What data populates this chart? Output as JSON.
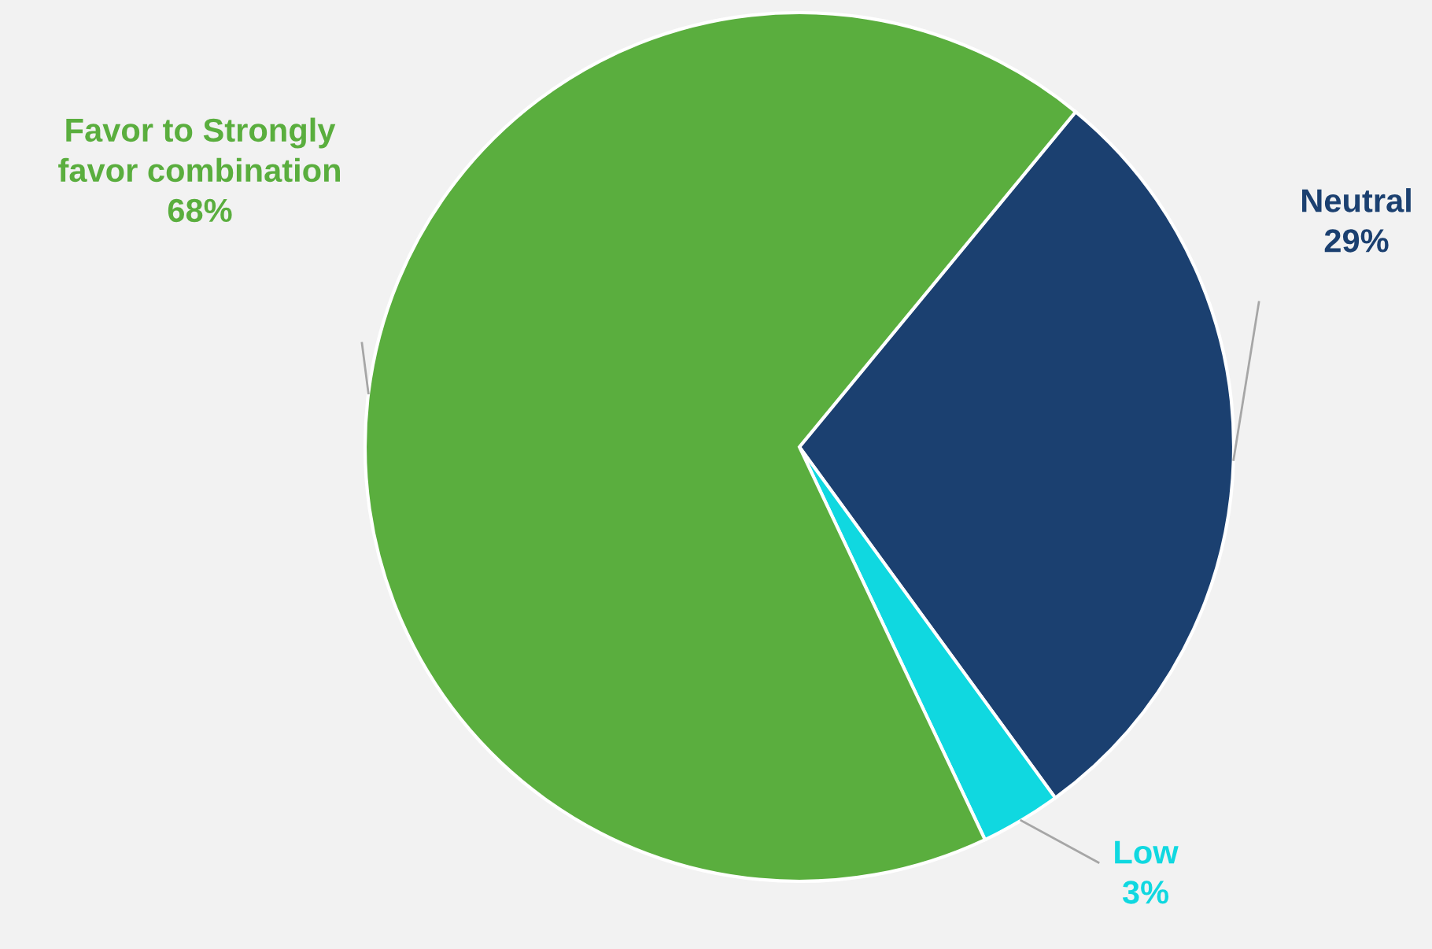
{
  "chart_data": {
    "type": "pie",
    "categories": [
      "Neutral",
      "Low",
      "Favor to Strongly\nfavor combination"
    ],
    "values": [
      29,
      3,
      68
    ],
    "value_labels": [
      "29%",
      "3%",
      "68%"
    ],
    "colors": [
      "#1b4070",
      "#10d8e0",
      "#5aae3e"
    ]
  }
}
